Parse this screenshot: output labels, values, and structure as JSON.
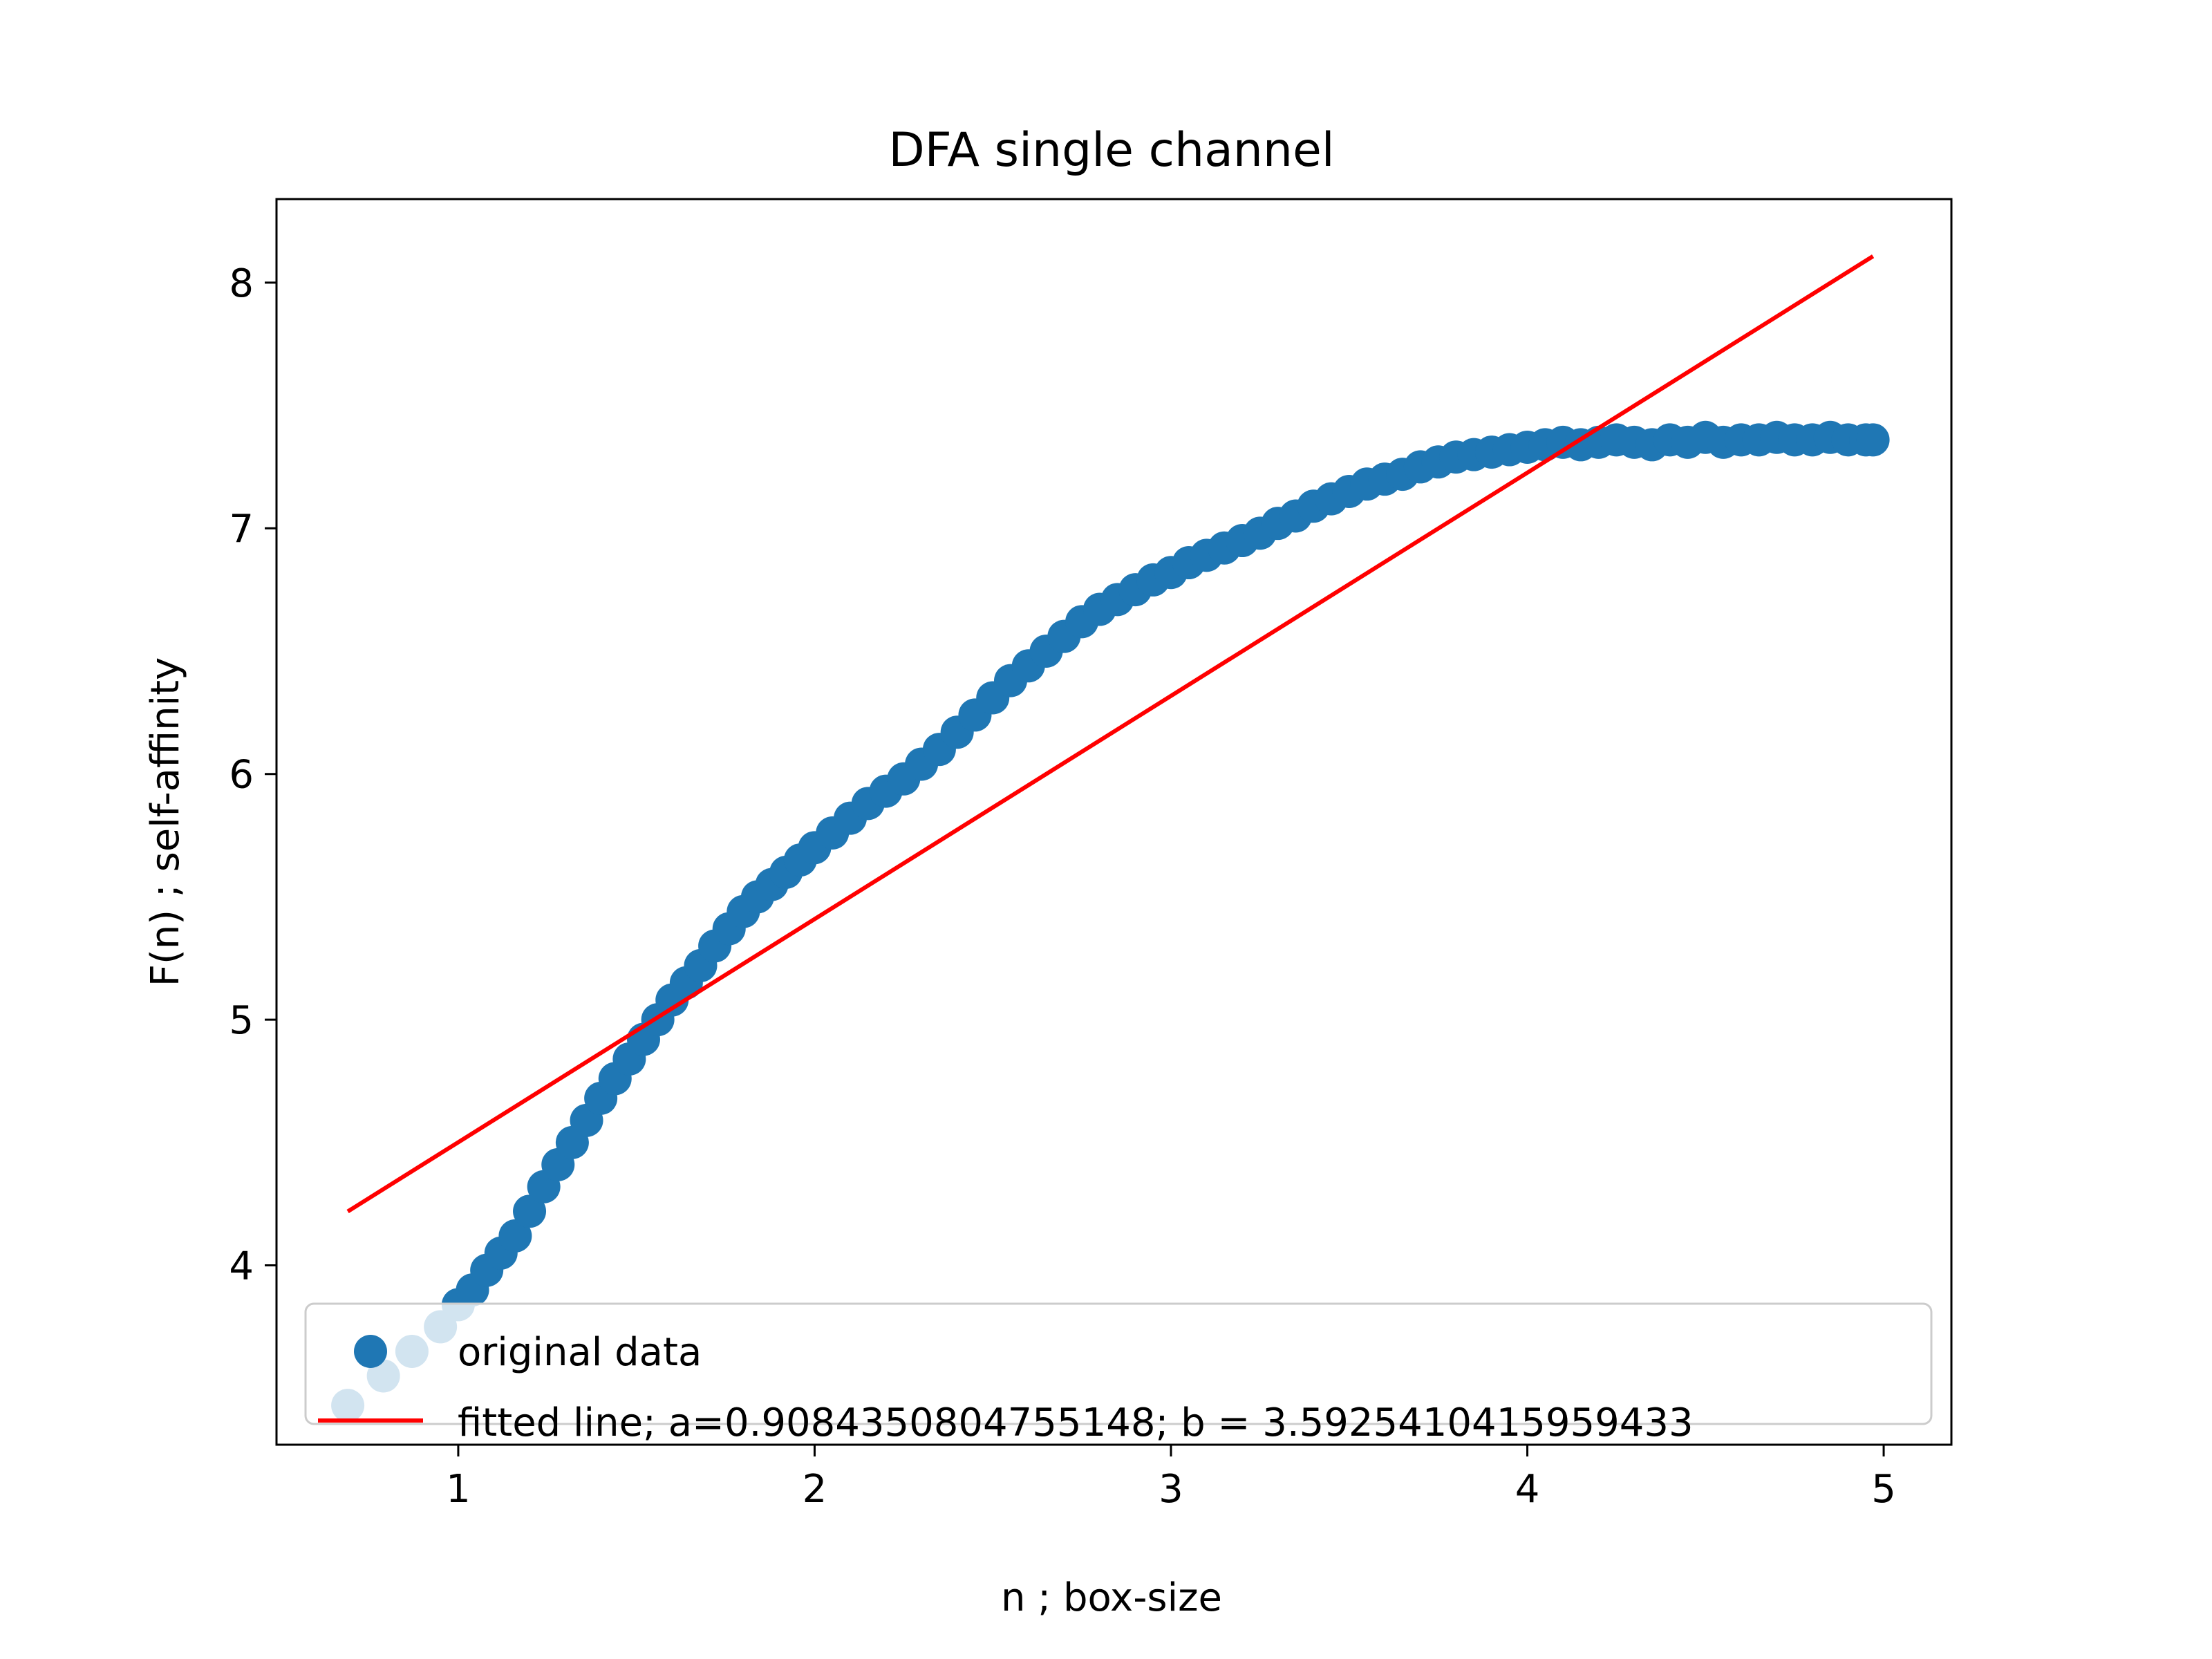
{
  "chart_data": {
    "type": "scatter",
    "title": "DFA single channel",
    "xlabel": "n ; box-size",
    "ylabel": "F(n) ; self-affinity",
    "xlim": [
      0.49,
      5.19
    ],
    "ylim": [
      3.27,
      8.34
    ],
    "xticks": [
      1,
      2,
      3,
      4,
      5
    ],
    "yticks": [
      4,
      5,
      6,
      7,
      8
    ],
    "grid": false,
    "legend_position": "lower right",
    "series": [
      {
        "name": "original data",
        "kind": "scatter",
        "color": "#1f77b4",
        "x": [
          0.69,
          0.79,
          0.87,
          0.95,
          1.0,
          1.04,
          1.08,
          1.12,
          1.16,
          1.2,
          1.24,
          1.28,
          1.32,
          1.36,
          1.4,
          1.44,
          1.48,
          1.52,
          1.56,
          1.6,
          1.64,
          1.68,
          1.72,
          1.76,
          1.8,
          1.84,
          1.88,
          1.92,
          1.96,
          2.0,
          2.05,
          2.1,
          2.15,
          2.2,
          2.25,
          2.3,
          2.35,
          2.4,
          2.45,
          2.5,
          2.55,
          2.6,
          2.65,
          2.7,
          2.75,
          2.8,
          2.85,
          2.9,
          2.95,
          3.0,
          3.05,
          3.1,
          3.15,
          3.2,
          3.25,
          3.3,
          3.35,
          3.4,
          3.45,
          3.5,
          3.55,
          3.6,
          3.65,
          3.7,
          3.75,
          3.8,
          3.85,
          3.9,
          3.95,
          4.0,
          4.05,
          4.1,
          4.15,
          4.2,
          4.25,
          4.3,
          4.35,
          4.4,
          4.45,
          4.5,
          4.55,
          4.6,
          4.65,
          4.7,
          4.75,
          4.8,
          4.85,
          4.9,
          4.95,
          4.97
        ],
        "y": [
          3.43,
          3.55,
          3.65,
          3.75,
          3.84,
          3.9,
          3.98,
          4.05,
          4.12,
          4.22,
          4.32,
          4.41,
          4.5,
          4.59,
          4.68,
          4.76,
          4.84,
          4.92,
          5.0,
          5.08,
          5.15,
          5.22,
          5.3,
          5.37,
          5.44,
          5.5,
          5.55,
          5.6,
          5.65,
          5.7,
          5.76,
          5.82,
          5.88,
          5.93,
          5.98,
          6.04,
          6.1,
          6.17,
          6.24,
          6.31,
          6.38,
          6.44,
          6.5,
          6.56,
          6.62,
          6.67,
          6.71,
          6.75,
          6.79,
          6.82,
          6.86,
          6.89,
          6.92,
          6.95,
          6.98,
          7.02,
          7.05,
          7.09,
          7.12,
          7.15,
          7.18,
          7.2,
          7.22,
          7.25,
          7.27,
          7.29,
          7.3,
          7.31,
          7.32,
          7.33,
          7.34,
          7.35,
          7.34,
          7.35,
          7.36,
          7.35,
          7.34,
          7.36,
          7.35,
          7.37,
          7.35,
          7.36,
          7.36,
          7.37,
          7.36,
          7.36,
          7.37,
          7.36,
          7.36,
          7.36
        ]
      },
      {
        "name": "fitted line; a=0.9084350804755148; b = 3.5925410415959433",
        "kind": "line",
        "color": "#ff0000",
        "slope": 0.9084350804755148,
        "intercept": 3.5925410415959433,
        "x": [
          0.69,
          4.97
        ]
      }
    ]
  }
}
